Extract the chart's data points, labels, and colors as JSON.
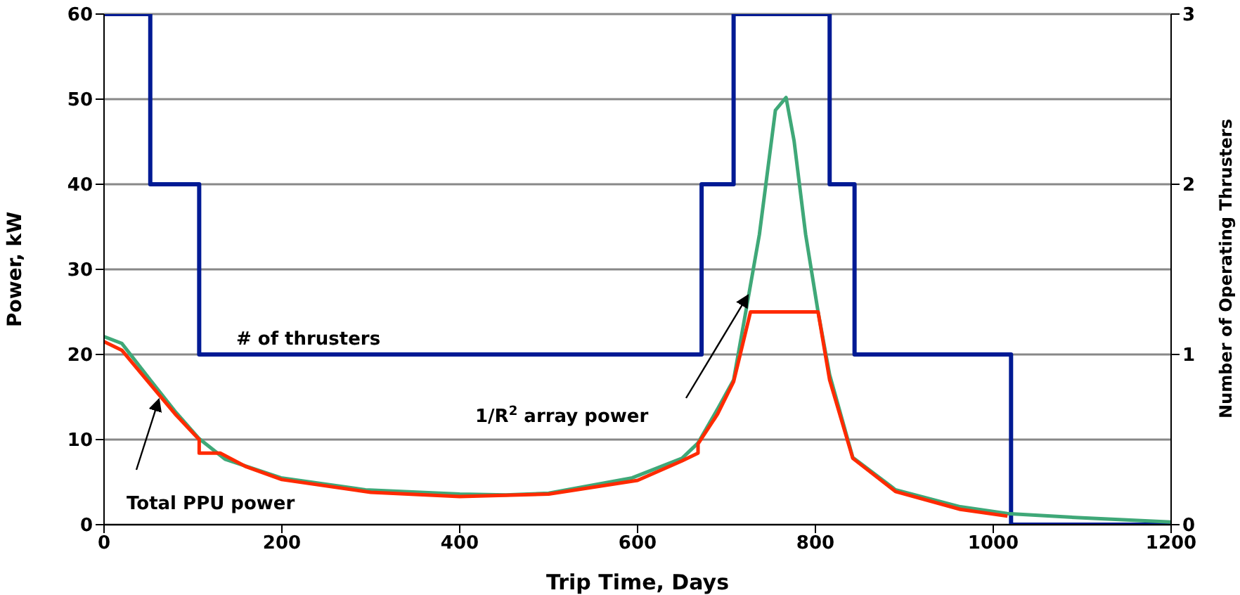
{
  "chart_data": {
    "type": "line",
    "xlabel": "Trip Time, Days",
    "ylabel": "Power, kW",
    "y2label": "Number of Operating Thrusters",
    "xlim": [
      0,
      1200
    ],
    "xticks": [
      0,
      200,
      400,
      600,
      800,
      1000,
      1200
    ],
    "ylim": [
      0,
      60
    ],
    "yticks": [
      0,
      10,
      20,
      30,
      40,
      50,
      60
    ],
    "y2lim": [
      0,
      3
    ],
    "y2ticks": [
      0,
      1,
      2,
      3
    ],
    "grid": "y",
    "marker": "none",
    "line_style": "solid",
    "series": [
      {
        "name": "# of thrusters",
        "type": "step",
        "axis": "y2",
        "color": "#001a94",
        "x": [
          0,
          52,
          107,
          672,
          708,
          816,
          844,
          1020,
          1200
        ],
        "values": [
          3,
          2,
          1,
          2,
          3,
          2,
          1,
          0,
          0
        ]
      },
      {
        "name": "1/R$^{2}$ array power",
        "color": "#3fa878",
        "x": [
          0,
          20,
          52,
          80,
          107,
          136,
          199,
          294,
          400,
          452,
          500,
          594,
          650,
          668,
          690,
          708,
          723,
          737,
          755,
          767,
          776,
          789,
          803,
          816,
          842,
          890,
          963,
          1016,
          1100,
          1200
        ],
        "values": [
          22.1,
          21.3,
          17,
          13.3,
          10.1,
          7.7,
          5.5,
          4.1,
          3.6,
          3.5,
          3.7,
          5.5,
          7.8,
          9.6,
          13.6,
          17,
          25.8,
          34.1,
          48.7,
          50.2,
          45.1,
          34.1,
          25,
          17.6,
          7.9,
          4.1,
          2.1,
          1.3,
          0.8,
          0.3
        ]
      },
      {
        "name": "Total PPU power",
        "color": "#ff2a00",
        "x": [
          0,
          20,
          52,
          80,
          107,
          107,
          131,
          160,
          200,
          300,
          400,
          500,
          600,
          650,
          668,
          668,
          690,
          708,
          727,
          803,
          816,
          842,
          890,
          963,
          1016
        ],
        "values": [
          21.5,
          20.5,
          16.5,
          13,
          10,
          8.4,
          8.4,
          6.8,
          5.3,
          3.8,
          3.3,
          3.6,
          5.2,
          7.5,
          8.4,
          9.5,
          13,
          16.8,
          25,
          25,
          17,
          7.8,
          3.9,
          1.8,
          1
        ]
      }
    ]
  }
}
